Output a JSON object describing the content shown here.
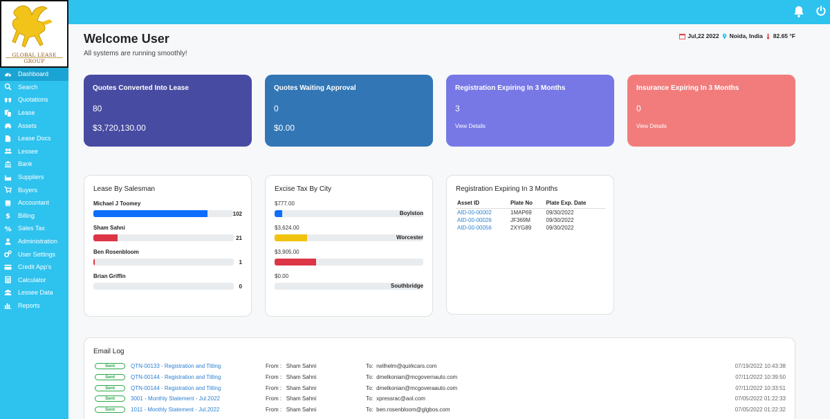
{
  "brand": {
    "name": "GLOBAL LEASE GROUP"
  },
  "colors": {
    "topbar": "#2ec2ee",
    "sidebar_active": "#1aa4d3",
    "card1": "#474ba1",
    "card2": "#3276b5",
    "card3": "#7778e6",
    "card4": "#f27c7c"
  },
  "sidebar": {
    "items": [
      {
        "label": "Dashboard",
        "icon": "dashboard-icon",
        "active": true
      },
      {
        "label": "Search",
        "icon": "search-icon"
      },
      {
        "label": "Quotations",
        "icon": "quote-icon"
      },
      {
        "label": "Lease",
        "icon": "copy-icon"
      },
      {
        "label": "Assets",
        "icon": "car-icon"
      },
      {
        "label": "Lease Docs",
        "icon": "file-icon"
      },
      {
        "label": "Lessee",
        "icon": "users-icon"
      },
      {
        "label": "Bank",
        "icon": "bank-icon"
      },
      {
        "label": "Suppliers",
        "icon": "industry-icon"
      },
      {
        "label": "Buyers",
        "icon": "cart-icon"
      },
      {
        "label": "Accountant",
        "icon": "book-icon"
      },
      {
        "label": "Billing",
        "icon": "dollar-icon"
      },
      {
        "label": "Sales Tax",
        "icon": "percent-icon"
      },
      {
        "label": "Administration",
        "icon": "admin-icon"
      },
      {
        "label": "User Settings",
        "icon": "gears-icon"
      },
      {
        "label": "Credit App's",
        "icon": "credit-card-icon"
      },
      {
        "label": "Calculator",
        "icon": "calculator-icon"
      },
      {
        "label": "Lessee Data",
        "icon": "users-data-icon"
      },
      {
        "label": "Reports",
        "icon": "bar-chart-icon"
      }
    ]
  },
  "header": {
    "title": "Welcome User",
    "subtitle": "All systems are running smoothly!",
    "date": "Jul,22 2022",
    "location": "Noida, India",
    "temperature": "82.65 °F"
  },
  "cards": [
    {
      "title": "Quotes Converted Into Lease",
      "line1": "80",
      "line2": "$3,720,130.00"
    },
    {
      "title": "Quotes Waiting Approval",
      "line1": "0",
      "line2": "$0.00"
    },
    {
      "title": "Registration Expiring In 3 Months",
      "line1": "3",
      "link": "View Details"
    },
    {
      "title": "Insurance Expiring In 3 Months",
      "line1": "0",
      "link": "View Details"
    }
  ],
  "lease_by_salesman": {
    "title": "Lease By Salesman",
    "rows": [
      {
        "name": "Michael J Toomey",
        "value": "102",
        "fraction": 0.82,
        "color": "#0d6efd"
      },
      {
        "name": "Sham Sahni",
        "value": "21",
        "fraction": 0.17,
        "color": "#dc3545"
      },
      {
        "name": "Ben Rosenbloom",
        "value": "1",
        "fraction": 0.01,
        "color": "#dc3545"
      },
      {
        "name": "Brian Griffin",
        "value": "0",
        "fraction": 0.0,
        "color": "#dc3545"
      }
    ]
  },
  "excise_tax": {
    "title": "Excise Tax By City",
    "rows": [
      {
        "amount": "$777.00",
        "city": "Boylston",
        "fraction": 0.05,
        "color": "#0d6efd"
      },
      {
        "amount": "$3,624.00",
        "city": "Worcester",
        "fraction": 0.22,
        "color": "#f0c30f"
      },
      {
        "amount": "$3,905.00",
        "city": "",
        "fraction": 0.28,
        "color": "#dc3545"
      },
      {
        "amount": "$0.00",
        "city": "Southbridge",
        "fraction": 0.0,
        "color": "#dc3545"
      }
    ]
  },
  "registration": {
    "title": "Registration Expiring In 3 Months",
    "columns": [
      "Asset ID",
      "Plate No",
      "Plate Exp. Date"
    ],
    "rows": [
      [
        "AID-00-00002",
        "1MAP69",
        "09/30/2022"
      ],
      [
        "AID-00-00026",
        "JF369M",
        "09/30/2022"
      ],
      [
        "AID-00-00056",
        "2XYG89",
        "09/30/2022"
      ]
    ]
  },
  "email_log": {
    "title": "Email Log",
    "rows": [
      {
        "status": "Sent",
        "subject": "QTN-00133 - Registration and Titling",
        "from_label": "From :",
        "from": "Sham Sahni",
        "to_label": "To:",
        "to": "rwilhelm@quirkcars.com",
        "time": "07/19/2022 10:43:38"
      },
      {
        "status": "Sent",
        "subject": "QTN-00144 - Registration and Titling",
        "from_label": "From :",
        "from": "Sham Sahni",
        "to_label": "To:",
        "to": "dmelkonian@mcgovernauto.com",
        "time": "07/11/2022 10:39:50"
      },
      {
        "status": "Sent",
        "subject": "QTN-00144 - Registration and Titling",
        "from_label": "From :",
        "from": "Sham Sahni",
        "to_label": "To:",
        "to": "dmelkonian@mcgoveraauto.com",
        "time": "07/11/2022 10:33:51"
      },
      {
        "status": "Sent",
        "subject": "3001 - Monthly Statement - Jul.2022",
        "from_label": "From :",
        "from": "Sham Sahni",
        "to_label": "To:",
        "to": "xpressrac@aol.com",
        "time": "07/05/2022 01:22:33"
      },
      {
        "status": "Sent",
        "subject": "1011 - Monthly Statement - Jul.2022",
        "from_label": "From :",
        "from": "Sham Sahni",
        "to_label": "To:",
        "to": "ben.rosenbloom@glgbos.com",
        "time": "07/05/2022 01:22:32"
      }
    ]
  }
}
